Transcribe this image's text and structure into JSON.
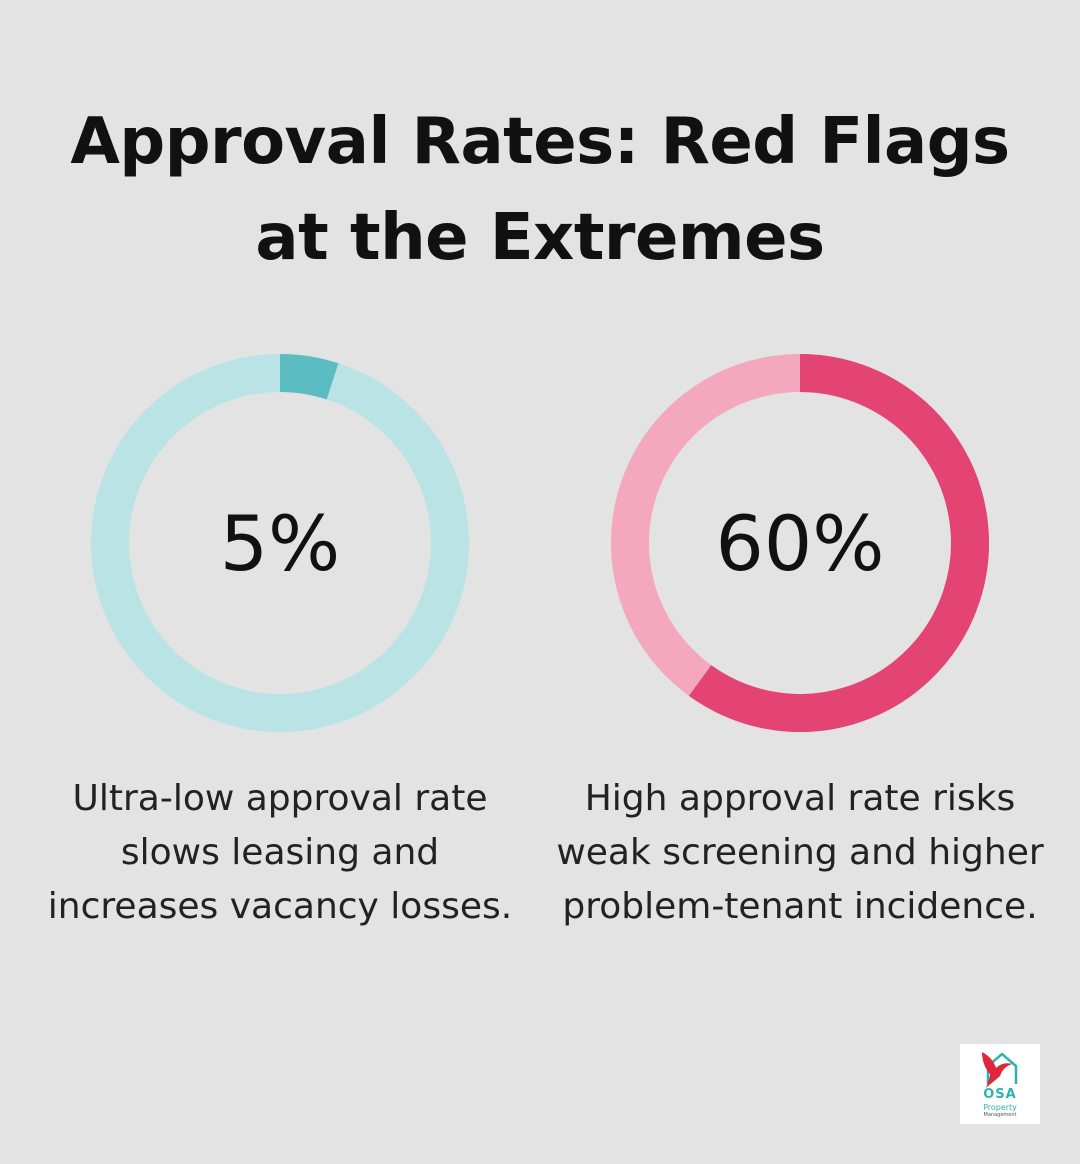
{
  "title": {
    "line1": "Approval Rates: Red Flags",
    "line2": "at the Extremes"
  },
  "chart_data": [
    {
      "type": "pie",
      "value": 5,
      "label": "5%",
      "caption": [
        "Ultra-low approval rate",
        "slows leasing and",
        "increases vacancy losses."
      ],
      "colors": {
        "track": "#b9e3e5",
        "fill": "#5bbcc1"
      }
    },
    {
      "type": "pie",
      "value": 60,
      "label": "60%",
      "caption": [
        "High approval rate risks",
        "weak screening and higher",
        "problem-tenant incidence."
      ],
      "colors": {
        "track": "#f3a8bd",
        "fill": "#e34474"
      }
    }
  ],
  "logo": {
    "brand": "OSA",
    "line1": "Property",
    "line2": "Management",
    "icon": "bird-house-icon",
    "colors": {
      "bird": "#e0263b",
      "house": "#2bb3b3"
    }
  }
}
